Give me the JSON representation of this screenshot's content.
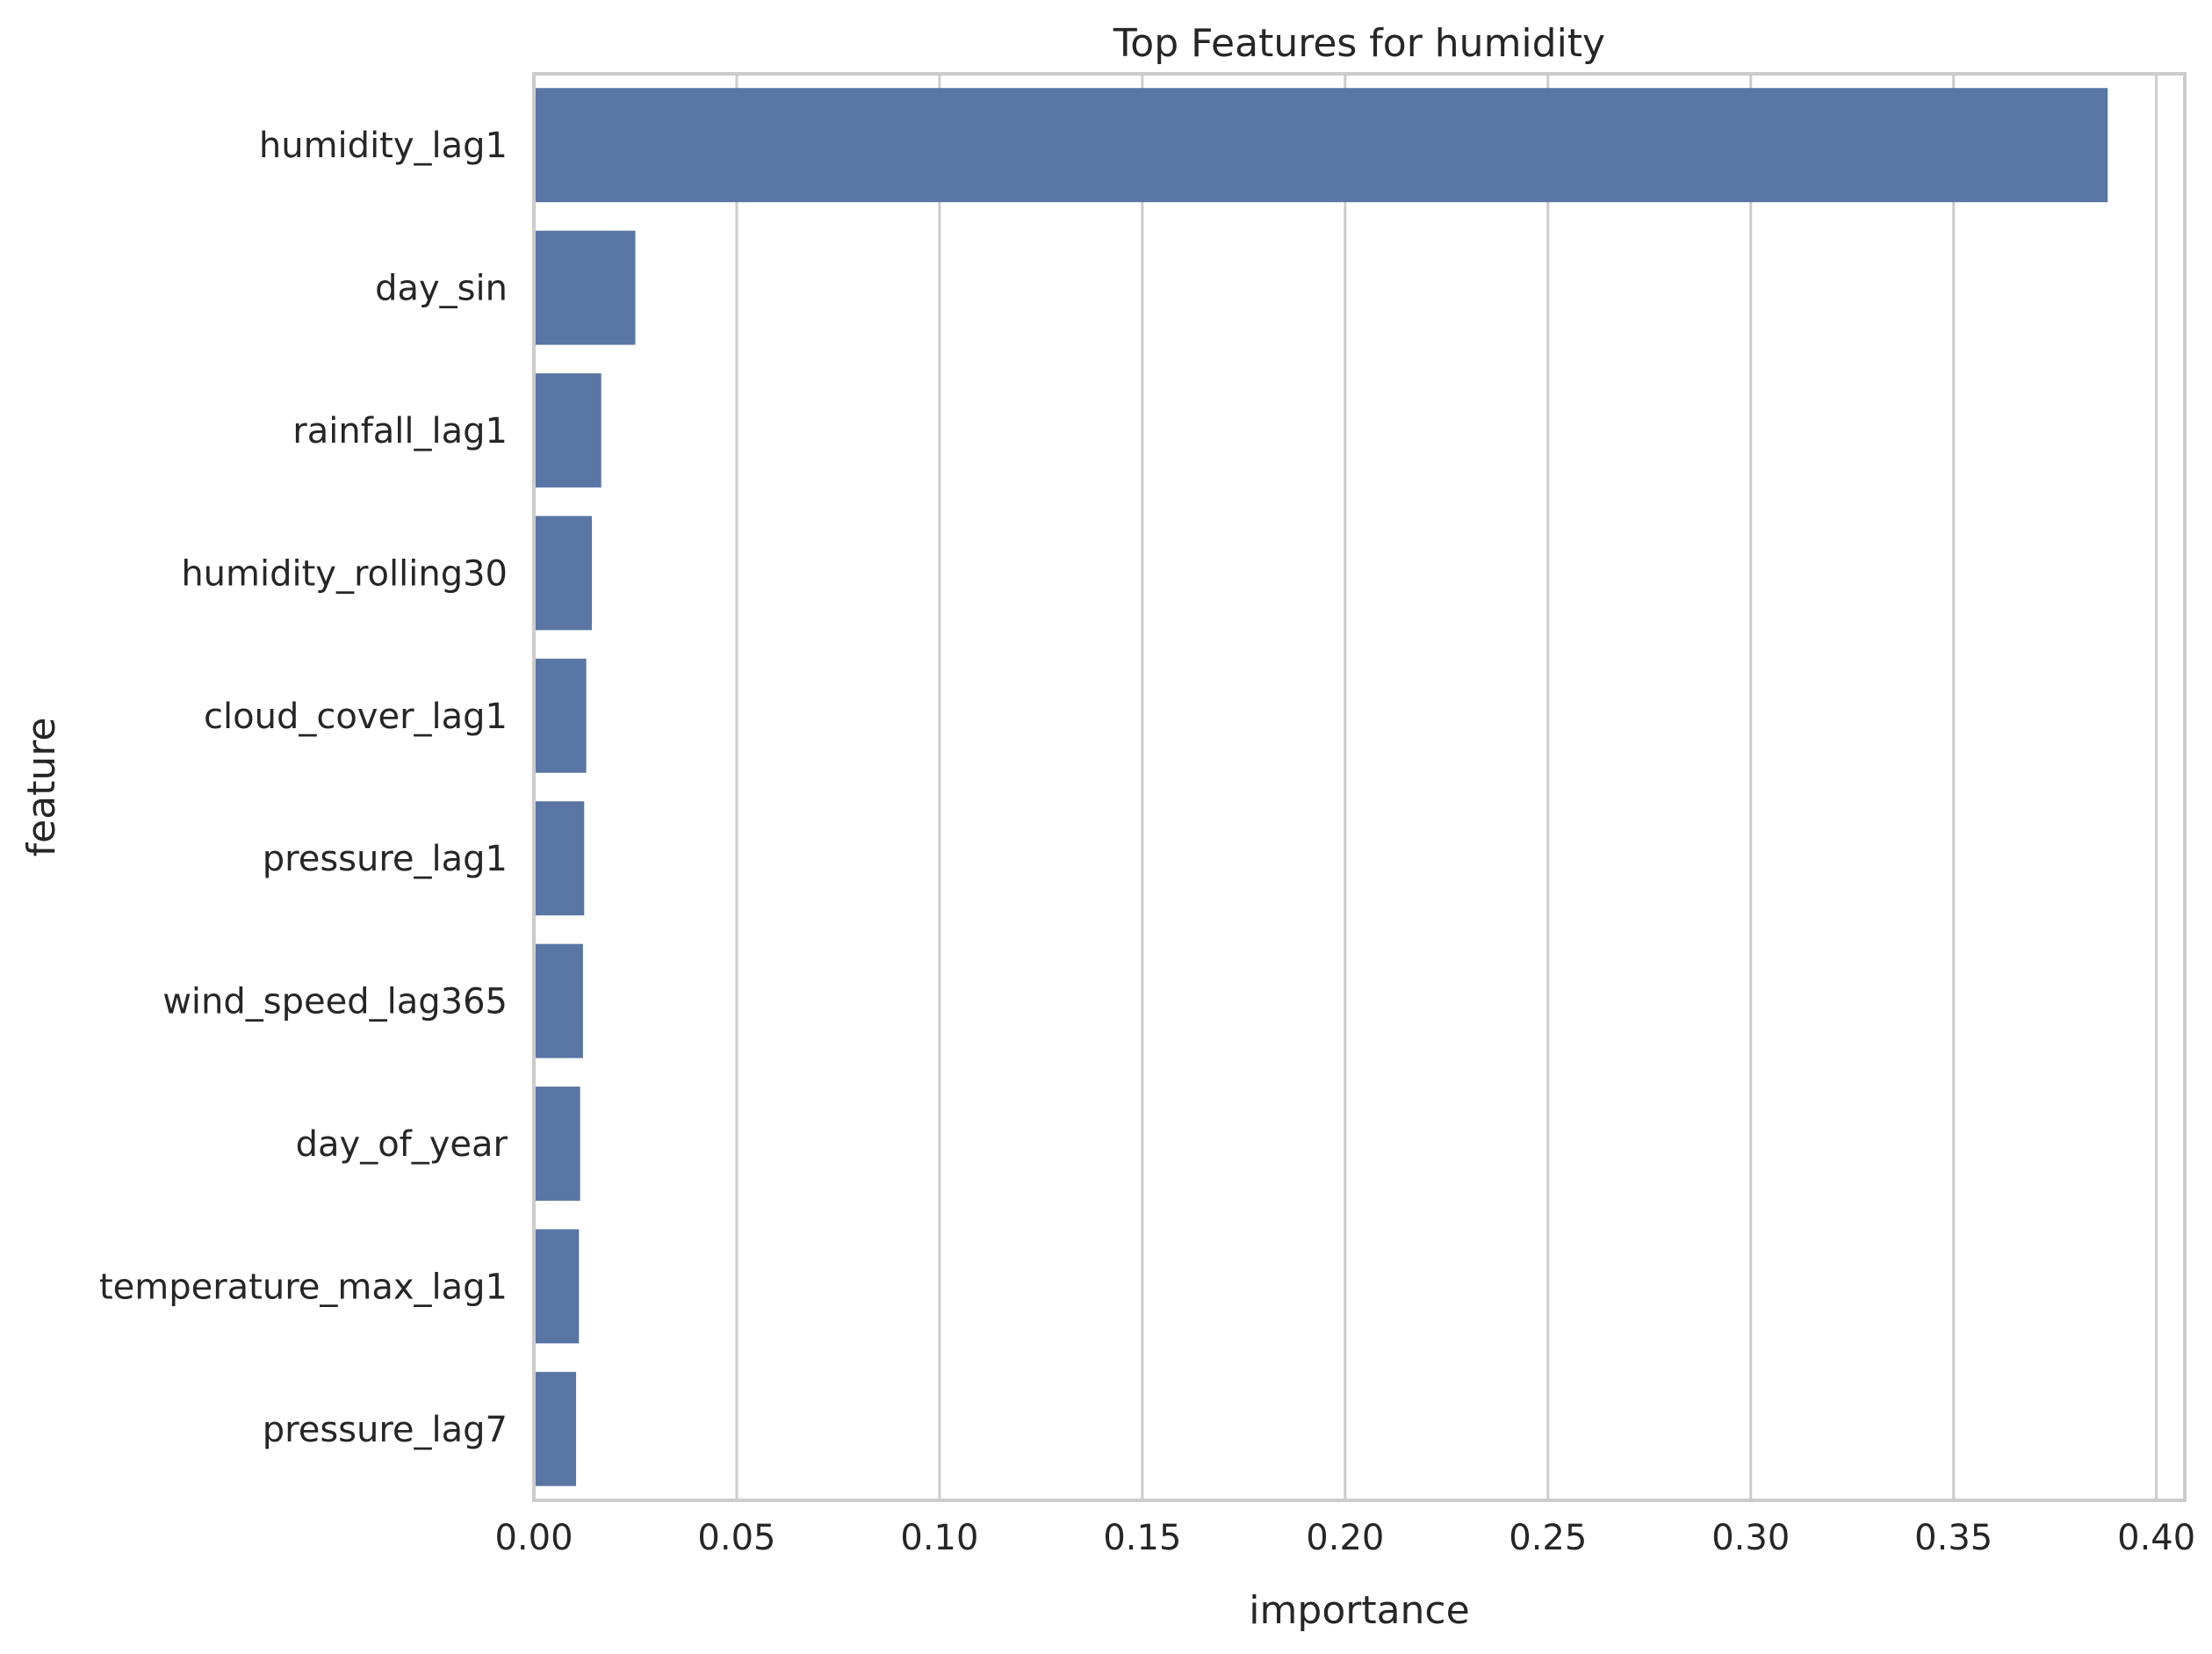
{
  "chart_data": {
    "type": "bar",
    "orientation": "horizontal",
    "title": "Top Features for humidity",
    "xlabel": "importance",
    "ylabel": "feature",
    "xlim": [
      0,
      0.407
    ],
    "x_ticks": [
      0.0,
      0.05,
      0.1,
      0.15,
      0.2,
      0.25,
      0.3,
      0.35,
      0.4
    ],
    "x_tick_labels": [
      "0.00",
      "0.05",
      "0.10",
      "0.15",
      "0.20",
      "0.25",
      "0.30",
      "0.35",
      "0.40"
    ],
    "grid": "vertical",
    "bar_color": "#5975a4",
    "categories": [
      "humidity_lag1",
      "day_sin",
      "rainfall_lag1",
      "humidity_rolling30",
      "cloud_cover_lag1",
      "pressure_lag1",
      "wind_speed_lag365",
      "day_of_year",
      "temperature_max_lag1",
      "pressure_lag7"
    ],
    "values": [
      0.388,
      0.025,
      0.0166,
      0.0143,
      0.0129,
      0.0124,
      0.0121,
      0.0114,
      0.0111,
      0.0104
    ]
  }
}
